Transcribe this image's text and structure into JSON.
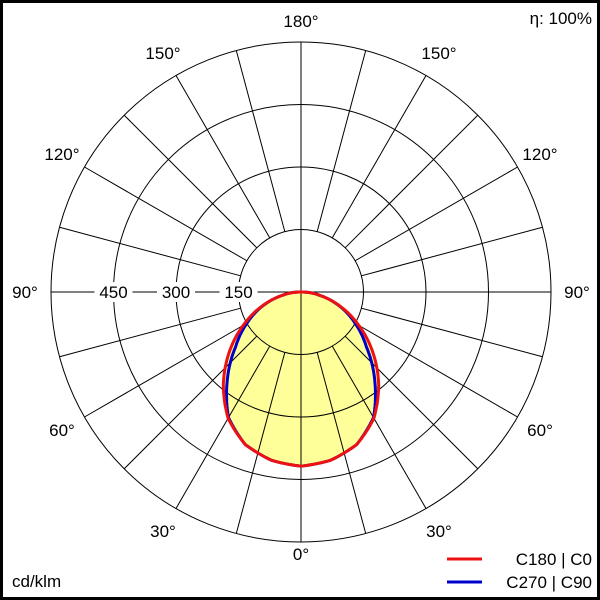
{
  "chart_data": {
    "type": "polar",
    "unit_label": "cd/klm",
    "efficiency_label": "η: 100%",
    "radial_ticks": [
      150,
      300,
      450
    ],
    "radial_max": 600,
    "angle_ticks": [
      0,
      30,
      60,
      90,
      120,
      150,
      180
    ],
    "angle_tick_suffix": "°",
    "grid": true,
    "legend_placement": "bottom-right",
    "fill_color": "#ffff99",
    "series": [
      {
        "name": "C180 | C0",
        "color": "#ee1111",
        "gamma": [
          0,
          10,
          20,
          30,
          40,
          50,
          60,
          70,
          80,
          90
        ],
        "values": [
          418,
          410,
          390,
          350,
          290,
          225,
          160,
          100,
          45,
          5
        ]
      },
      {
        "name": "C270 | C90",
        "color": "#0000cc",
        "gamma": [
          0,
          10,
          20,
          30,
          40,
          50,
          60,
          70,
          80,
          90
        ],
        "values": [
          418,
          410,
          390,
          348,
          275,
          205,
          150,
          98,
          45,
          5
        ]
      }
    ]
  }
}
